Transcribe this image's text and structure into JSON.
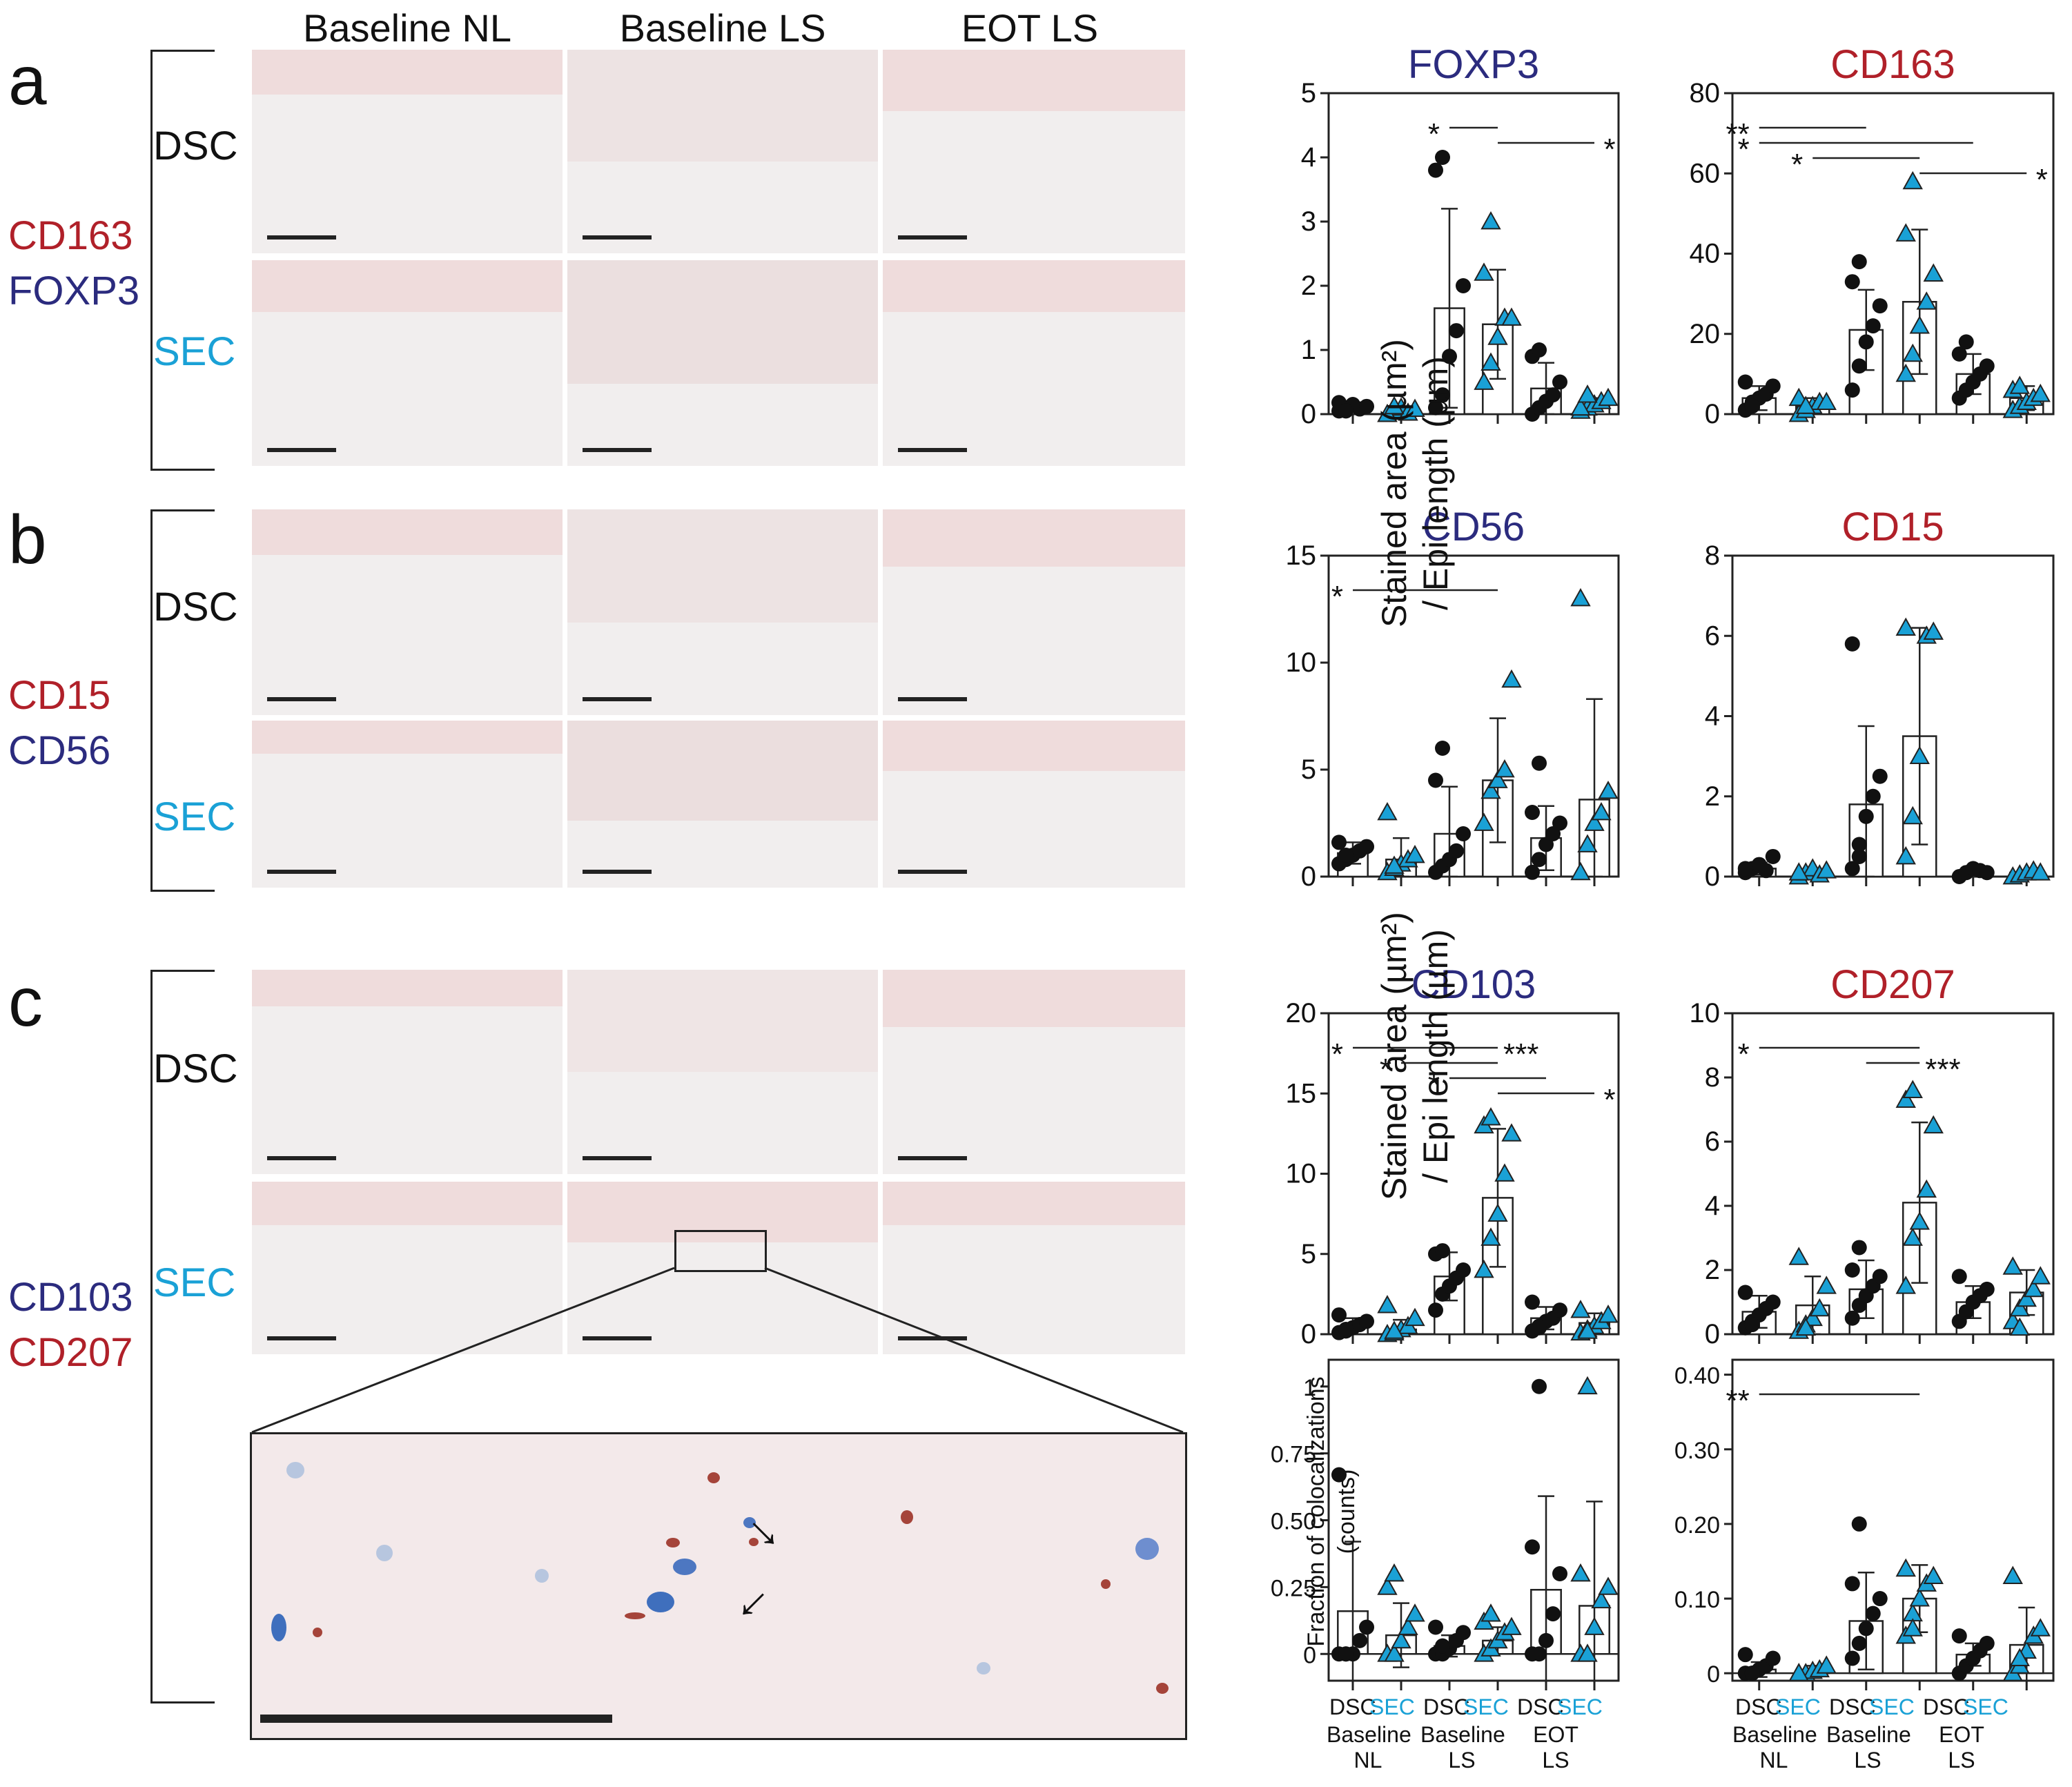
{
  "colors": {
    "red": "#b02029",
    "navy": "#2b2b7e",
    "cyan": "#1aa1d6",
    "black": "#111111"
  },
  "columns": [
    "Baseline NL",
    "Baseline LS",
    "EOT LS"
  ],
  "panels": [
    {
      "letter": "a",
      "stain1": "CD163",
      "stain2": "FOXP3",
      "row1": "DSC",
      "row2": "SEC"
    },
    {
      "letter": "b",
      "stain1": "CD15",
      "stain2": "CD56",
      "row1": "DSC",
      "row2": "SEC"
    },
    {
      "letter": "c",
      "stain1": "CD103",
      "stain2": "CD207",
      "row1": "DSC",
      "row2": "SEC"
    }
  ],
  "y_axis_label": {
    "line1": "Stained area (µm²)",
    "line2": "/ Epi length (µm)"
  },
  "coloc_axis_label": {
    "line1": "Fraction of colocalizations",
    "line2": "(counts)"
  },
  "x_axis": {
    "tick_labels": [
      "DSC",
      "SEC",
      "DSC",
      "SEC",
      "DSC",
      "SEC"
    ],
    "groups": [
      {
        "line1": "Baseline",
        "line2": "NL"
      },
      {
        "line1": "Baseline",
        "line2": "LS"
      },
      {
        "line1": "EOT",
        "line2": "LS"
      }
    ]
  },
  "chart_data": [
    {
      "id": "foxp3",
      "type": "bar",
      "title": "FOXP3",
      "title_color": "#2b2b7e",
      "ylim": [
        0,
        5
      ],
      "yticks": [
        "0",
        "1",
        "2",
        "3",
        "4",
        "5"
      ],
      "categories": [
        "DSC Baseline NL",
        "SEC Baseline NL",
        "DSC Baseline LS",
        "SEC Baseline LS",
        "DSC EOT LS",
        "SEC EOT LS"
      ],
      "values": [
        0.1,
        0.05,
        1.65,
        1.4,
        0.4,
        0.15
      ],
      "err": [
        0.05,
        0.05,
        1.55,
        0.85,
        0.4,
        0.1
      ],
      "points": [
        [
          0.05,
          0.1,
          0.15,
          0.08,
          0.12,
          0.18,
          0.05
        ],
        [
          0,
          0.05,
          0.1,
          0.02,
          0.08,
          0.0,
          0.12
        ],
        [
          0.1,
          0.3,
          0.9,
          1.3,
          2.0,
          3.8,
          4.0
        ],
        [
          0.5,
          0.8,
          1.2,
          1.5,
          1.5,
          2.2,
          3.0
        ],
        [
          0.0,
          0.1,
          0.2,
          0.3,
          0.5,
          0.9,
          1.0
        ],
        [
          0.05,
          0.1,
          0.15,
          0.2,
          0.25,
          0.1,
          0.3
        ]
      ],
      "sig": [
        {
          "from": 2,
          "to": 3,
          "label": "*",
          "rise": 0
        },
        {
          "from": 3,
          "to": 5,
          "label": "*",
          "rise": 1
        }
      ]
    },
    {
      "id": "cd163",
      "type": "bar",
      "title": "CD163",
      "title_color": "#b02029",
      "ylim": [
        0,
        80
      ],
      "yticks": [
        "0",
        "20",
        "40",
        "60",
        "80"
      ],
      "categories": [
        "DSC Baseline NL",
        "SEC Baseline NL",
        "DSC Baseline LS",
        "SEC Baseline LS",
        "DSC EOT LS",
        "SEC EOT LS"
      ],
      "values": [
        4,
        2,
        21,
        28,
        10,
        4
      ],
      "err": [
        3,
        2,
        10,
        18,
        5,
        3
      ],
      "points": [
        [
          1,
          3,
          4,
          5,
          7,
          8,
          2
        ],
        [
          0,
          1,
          2,
          3,
          3,
          4,
          2
        ],
        [
          6,
          12,
          18,
          22,
          27,
          33,
          38
        ],
        [
          10,
          15,
          22,
          28,
          35,
          45,
          58
        ],
        [
          4,
          6,
          8,
          10,
          12,
          15,
          18
        ],
        [
          1,
          2,
          3,
          4,
          5,
          6,
          7
        ]
      ],
      "sig": [
        {
          "from": 0,
          "to": 2,
          "label": "**",
          "rise": 0
        },
        {
          "from": 0,
          "to": 4,
          "label": "*",
          "rise": 1
        },
        {
          "from": 1,
          "to": 3,
          "label": "*",
          "rise": 2
        },
        {
          "from": 3,
          "to": 5,
          "label": "*",
          "rise": 3
        }
      ]
    },
    {
      "id": "cd56",
      "type": "bar",
      "title": "CD56",
      "title_color": "#2b2b7e",
      "ylim": [
        0,
        15
      ],
      "yticks": [
        "0",
        "5",
        "10",
        "15"
      ],
      "categories": [
        "DSC Baseline NL",
        "SEC Baseline NL",
        "DSC Baseline LS",
        "SEC Baseline LS",
        "DSC EOT LS",
        "SEC EOT LS"
      ],
      "values": [
        1.1,
        0.8,
        2.0,
        4.5,
        1.8,
        3.6
      ],
      "err": [
        0.5,
        1.0,
        2.2,
        2.9,
        1.5,
        4.7
      ],
      "points": [
        [
          0.6,
          0.8,
          1.0,
          1.2,
          1.4,
          1.6,
          1.0
        ],
        [
          0.2,
          0.4,
          0.6,
          0.8,
          1.0,
          3.0,
          0.5
        ],
        [
          0.2,
          0.5,
          0.8,
          1.2,
          2.0,
          4.5,
          6.0
        ],
        [
          2.5,
          4.0,
          4.5,
          5.0,
          9.2
        ],
        [
          0.2,
          0.8,
          1.5,
          2.0,
          2.5,
          3.0,
          5.3
        ],
        [
          0.2,
          1.5,
          2.5,
          3.0,
          4.0,
          13.0
        ]
      ],
      "sig": [
        {
          "from": 0,
          "to": 3,
          "label": "*",
          "rise": 0
        }
      ]
    },
    {
      "id": "cd15",
      "type": "bar",
      "title": "CD15",
      "title_color": "#b02029",
      "ylim": [
        0,
        8
      ],
      "yticks": [
        "0",
        "2",
        "4",
        "6",
        "8"
      ],
      "categories": [
        "DSC Baseline NL",
        "SEC Baseline NL",
        "DSC Baseline LS",
        "SEC Baseline LS",
        "DSC EOT LS",
        "SEC EOT LS"
      ],
      "values": [
        0.2,
        0.1,
        1.8,
        3.5,
        0.15,
        0.1
      ],
      "err": [
        0.15,
        0.1,
        1.95,
        2.7,
        0.1,
        0.05
      ],
      "points": [
        [
          0.1,
          0.2,
          0.3,
          0.15,
          0.5,
          0.2
        ],
        [
          0,
          0.1,
          0.2,
          0.05,
          0.15,
          0.1
        ],
        [
          0.2,
          0.5,
          1.5,
          2.0,
          2.5,
          5.8,
          0.8
        ],
        [
          0.5,
          1.5,
          3.0,
          6.0,
          6.1,
          6.2
        ],
        [
          0,
          0.1,
          0.2,
          0.15,
          0.1
        ],
        [
          0,
          0.05,
          0.1,
          0.15,
          0.1
        ]
      ],
      "sig": []
    },
    {
      "id": "cd103",
      "type": "bar",
      "title": "CD103",
      "title_color": "#2b2b7e",
      "ylim": [
        0,
        20
      ],
      "yticks": [
        "0",
        "5",
        "10",
        "15",
        "20"
      ],
      "categories": [
        "DSC Baseline NL",
        "SEC Baseline NL",
        "DSC Baseline LS",
        "SEC Baseline LS",
        "DSC EOT LS",
        "SEC EOT LS"
      ],
      "values": [
        0.5,
        0.3,
        3.6,
        8.5,
        1.0,
        0.7
      ],
      "err": [
        0.5,
        0.6,
        1.5,
        4.3,
        0.7,
        0.6
      ],
      "points": [
        [
          0.1,
          0.2,
          0.4,
          0.6,
          0.8,
          1.2,
          0.3
        ],
        [
          0,
          0.1,
          0.3,
          0.5,
          1.0,
          1.8,
          0.2
        ],
        [
          1.5,
          2.5,
          3.0,
          3.5,
          4.0,
          5.0,
          5.2
        ],
        [
          4.0,
          6.0,
          7.5,
          10.0,
          12.5,
          13.0,
          13.5
        ],
        [
          0.2,
          0.5,
          0.8,
          1.0,
          1.5,
          2.0,
          0.4
        ],
        [
          0.1,
          0.3,
          0.5,
          0.8,
          1.2,
          1.5,
          0.2
        ]
      ],
      "sig": [
        {
          "from": 0,
          "to": 2,
          "label": "*",
          "rise": 0
        },
        {
          "from": 2,
          "to": 3,
          "label": "***",
          "rise": 0
        },
        {
          "from": 1,
          "to": 3,
          "label": "*",
          "rise": 1
        },
        {
          "from": 2,
          "to": 4,
          "label": "*",
          "rise": 2
        },
        {
          "from": 3,
          "to": 5,
          "label": "*",
          "rise": 3
        }
      ]
    },
    {
      "id": "cd207",
      "type": "bar",
      "title": "CD207",
      "title_color": "#b02029",
      "ylim": [
        0,
        10
      ],
      "yticks": [
        "0",
        "2",
        "4",
        "6",
        "8",
        "10"
      ],
      "categories": [
        "DSC Baseline NL",
        "SEC Baseline NL",
        "DSC Baseline LS",
        "SEC Baseline LS",
        "DSC EOT LS",
        "SEC EOT LS"
      ],
      "values": [
        0.7,
        0.9,
        1.4,
        4.1,
        1.0,
        1.3
      ],
      "err": [
        0.5,
        0.9,
        0.9,
        2.5,
        0.5,
        0.7
      ],
      "points": [
        [
          0.2,
          0.4,
          0.6,
          0.8,
          1.0,
          1.3,
          0.3
        ],
        [
          0.1,
          0.3,
          0.5,
          0.8,
          1.5,
          2.4,
          0.2
        ],
        [
          0.5,
          0.9,
          1.2,
          1.5,
          1.8,
          2.0,
          2.7
        ],
        [
          1.5,
          3.0,
          3.5,
          4.5,
          6.5,
          7.3,
          7.6
        ],
        [
          0.4,
          0.7,
          1.0,
          1.2,
          1.4,
          1.8
        ],
        [
          0.4,
          0.8,
          1.1,
          1.4,
          1.8,
          2.1,
          0.2
        ]
      ],
      "sig": [
        {
          "from": 0,
          "to": 3,
          "label": "*",
          "rise": 0
        },
        {
          "from": 2,
          "to": 3,
          "label": "***",
          "rise": 1
        }
      ]
    },
    {
      "id": "coloc1",
      "type": "bar",
      "title": "",
      "title_color": "#111111",
      "ylim": [
        -0.1,
        1.1
      ],
      "yticks": [
        "0",
        "0.25",
        "0.50",
        "0.75",
        "1"
      ],
      "ytickvals": [
        0,
        0.25,
        0.5,
        0.75,
        1
      ],
      "categories": [
        "DSC Baseline NL",
        "SEC Baseline NL",
        "DSC Baseline LS",
        "SEC Baseline LS",
        "DSC EOT LS",
        "SEC EOT LS"
      ],
      "values": [
        0.16,
        0.07,
        0.03,
        0.05,
        0.24,
        0.18
      ],
      "err": [
        0.26,
        0.12,
        0.04,
        0.05,
        0.35,
        0.39
      ],
      "points": [
        [
          0,
          0,
          0,
          0.05,
          0.1,
          0.67,
          0.0
        ],
        [
          0,
          0,
          0.05,
          0.1,
          0.15,
          0.25,
          0.3
        ],
        [
          0,
          0,
          0.02,
          0.05,
          0.08,
          0.1,
          0.03
        ],
        [
          0,
          0.02,
          0.05,
          0.08,
          0.1,
          0.12,
          0.15
        ],
        [
          0,
          0,
          0.05,
          0.15,
          0.3,
          0.4,
          1.0
        ],
        [
          0,
          0,
          0.1,
          0.2,
          0.25,
          0.3,
          1.0
        ]
      ],
      "sig": []
    },
    {
      "id": "coloc2",
      "type": "bar",
      "title": "",
      "title_color": "#111111",
      "ylim": [
        -0.01,
        0.42
      ],
      "yticks": [
        "0",
        "0.10",
        "0.20",
        "0.30",
        "0.40"
      ],
      "ytickvals": [
        0,
        0.1,
        0.2,
        0.3,
        0.4
      ],
      "categories": [
        "DSC Baseline NL",
        "SEC Baseline NL",
        "DSC Baseline LS",
        "SEC Baseline LS",
        "DSC EOT LS",
        "SEC EOT LS"
      ],
      "values": [
        0.005,
        0.004,
        0.07,
        0.1,
        0.025,
        0.038
      ],
      "err": [
        0.01,
        0.006,
        0.065,
        0.045,
        0.015,
        0.05
      ],
      "points": [
        [
          0,
          0,
          0.005,
          0.01,
          0.02,
          0.025,
          0
        ],
        [
          0,
          0,
          0.003,
          0.005,
          0.01,
          0
        ],
        [
          0.02,
          0.04,
          0.06,
          0.08,
          0.1,
          0.12,
          0.2
        ],
        [
          0.05,
          0.08,
          0.1,
          0.12,
          0.13,
          0.14,
          0.06
        ],
        [
          0,
          0.01,
          0.02,
          0.03,
          0.04,
          0.05
        ],
        [
          0,
          0.01,
          0.03,
          0.05,
          0.06,
          0.13,
          0.02
        ]
      ],
      "sig": [
        {
          "from": 0,
          "to": 3,
          "label": "**",
          "rise": 0
        }
      ]
    }
  ]
}
